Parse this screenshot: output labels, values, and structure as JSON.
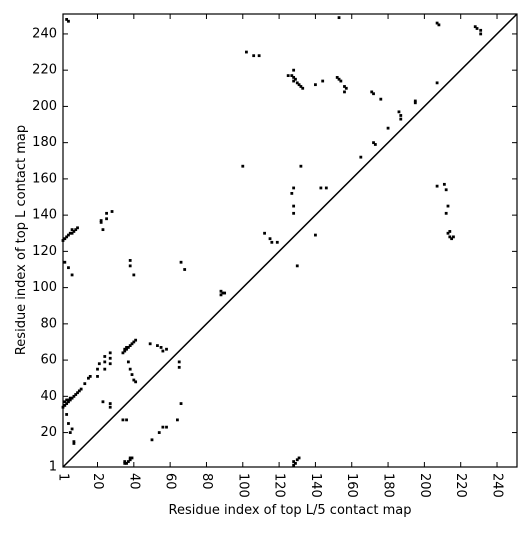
{
  "chart_data": {
    "type": "scatter",
    "xlabel": "Residue index of top L/5 contact map",
    "ylabel": "Residue index of top L contact map",
    "color": "#000000",
    "xlim": [
      1,
      251
    ],
    "ylim": [
      1,
      251
    ],
    "xticks": [
      1,
      20,
      40,
      60,
      80,
      100,
      120,
      140,
      160,
      180,
      200,
      220,
      240
    ],
    "yticks": [
      1,
      20,
      40,
      60,
      80,
      100,
      120,
      140,
      160,
      180,
      200,
      220,
      240
    ],
    "x": [
      1,
      2,
      3,
      4,
      5,
      6,
      7,
      8,
      9,
      10,
      11,
      2,
      3,
      4,
      5,
      1,
      2,
      3,
      4,
      5,
      6,
      7,
      8,
      9,
      6,
      2,
      4,
      6,
      3,
      4,
      5,
      6,
      7,
      7,
      4,
      3,
      13,
      15,
      16,
      20,
      20,
      21,
      24,
      24,
      24,
      27,
      27,
      27,
      25,
      28,
      25,
      22,
      23,
      22,
      23,
      27,
      27,
      34,
      35,
      36,
      37,
      38,
      39,
      40,
      41,
      35,
      36,
      37,
      38,
      39,
      40,
      41,
      38,
      38,
      40,
      49,
      53,
      55,
      58,
      56,
      34,
      36,
      35,
      36,
      35,
      37,
      38,
      39,
      38,
      50,
      54,
      56,
      58,
      64,
      66,
      65,
      65,
      66,
      68,
      88,
      89,
      90,
      88,
      100,
      102,
      106,
      109,
      112,
      115,
      116,
      119,
      125,
      127,
      128,
      128,
      129,
      130,
      131,
      132,
      133,
      128,
      127,
      128,
      128,
      128,
      130,
      132,
      128,
      129,
      130,
      131,
      128,
      140,
      140,
      144,
      143,
      146,
      152,
      153,
      154,
      156,
      157,
      156,
      153,
      165,
      171,
      172,
      172,
      173,
      176,
      180,
      186,
      187,
      187,
      195,
      195,
      207,
      208,
      207,
      207,
      211,
      212,
      212,
      213,
      213,
      214,
      215,
      216,
      214,
      228,
      229,
      231,
      231
    ],
    "y": [
      34,
      35,
      36,
      37,
      38,
      39,
      40,
      41,
      42,
      43,
      44,
      37,
      38,
      38,
      39,
      126,
      127,
      128,
      129,
      130,
      130,
      131,
      132,
      133,
      132,
      114,
      111,
      107,
      248,
      247,
      20,
      22,
      15,
      14,
      25,
      30,
      47,
      50,
      51,
      51,
      55,
      58,
      55,
      59,
      62,
      58,
      61,
      64,
      141,
      142,
      138,
      137,
      132,
      136,
      37,
      34,
      36,
      64,
      65,
      66,
      67,
      68,
      69,
      70,
      71,
      66,
      67,
      59,
      55,
      52,
      49,
      48,
      115,
      112,
      107,
      69,
      68,
      67,
      66,
      65,
      27,
      27,
      4,
      3,
      3,
      4,
      5,
      6,
      6,
      16,
      20,
      23,
      23,
      27,
      36,
      59,
      56,
      114,
      110,
      98,
      97,
      97,
      96,
      167,
      230,
      228,
      228,
      130,
      127,
      125,
      125,
      217,
      217,
      216,
      214,
      215,
      213,
      212,
      211,
      210,
      220,
      152,
      155,
      145,
      141,
      112,
      167,
      4,
      3,
      5,
      6,
      2,
      129,
      212,
      214,
      155,
      155,
      216,
      215,
      214,
      211,
      210,
      208,
      249,
      172,
      208,
      207,
      180,
      179,
      204,
      188,
      197,
      195,
      193,
      203,
      202,
      246,
      245,
      213,
      156,
      157,
      154,
      141,
      145,
      130,
      128,
      127,
      128,
      131,
      244,
      243,
      242,
      240
    ]
  }
}
